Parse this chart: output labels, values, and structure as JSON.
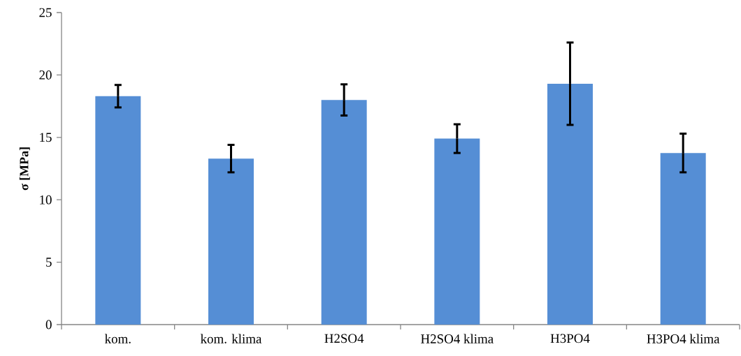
{
  "chart_data": {
    "type": "bar",
    "ylabel": "**σ [MPa]**",
    "categories": [
      "kom.",
      "kom. klima",
      "H2SO4",
      "H2SO4 klima",
      "H3PO4",
      "H3PO4 klima"
    ],
    "values": [
      18.3,
      13.3,
      18.0,
      14.9,
      19.3,
      13.75
    ],
    "errors": [
      0.9,
      1.1,
      1.25,
      1.15,
      3.3,
      1.55
    ],
    "color": "#558ed5",
    "ylim": [
      0,
      25
    ],
    "yticks": [
      0,
      5,
      10,
      15,
      20,
      25
    ],
    "grid": false
  }
}
